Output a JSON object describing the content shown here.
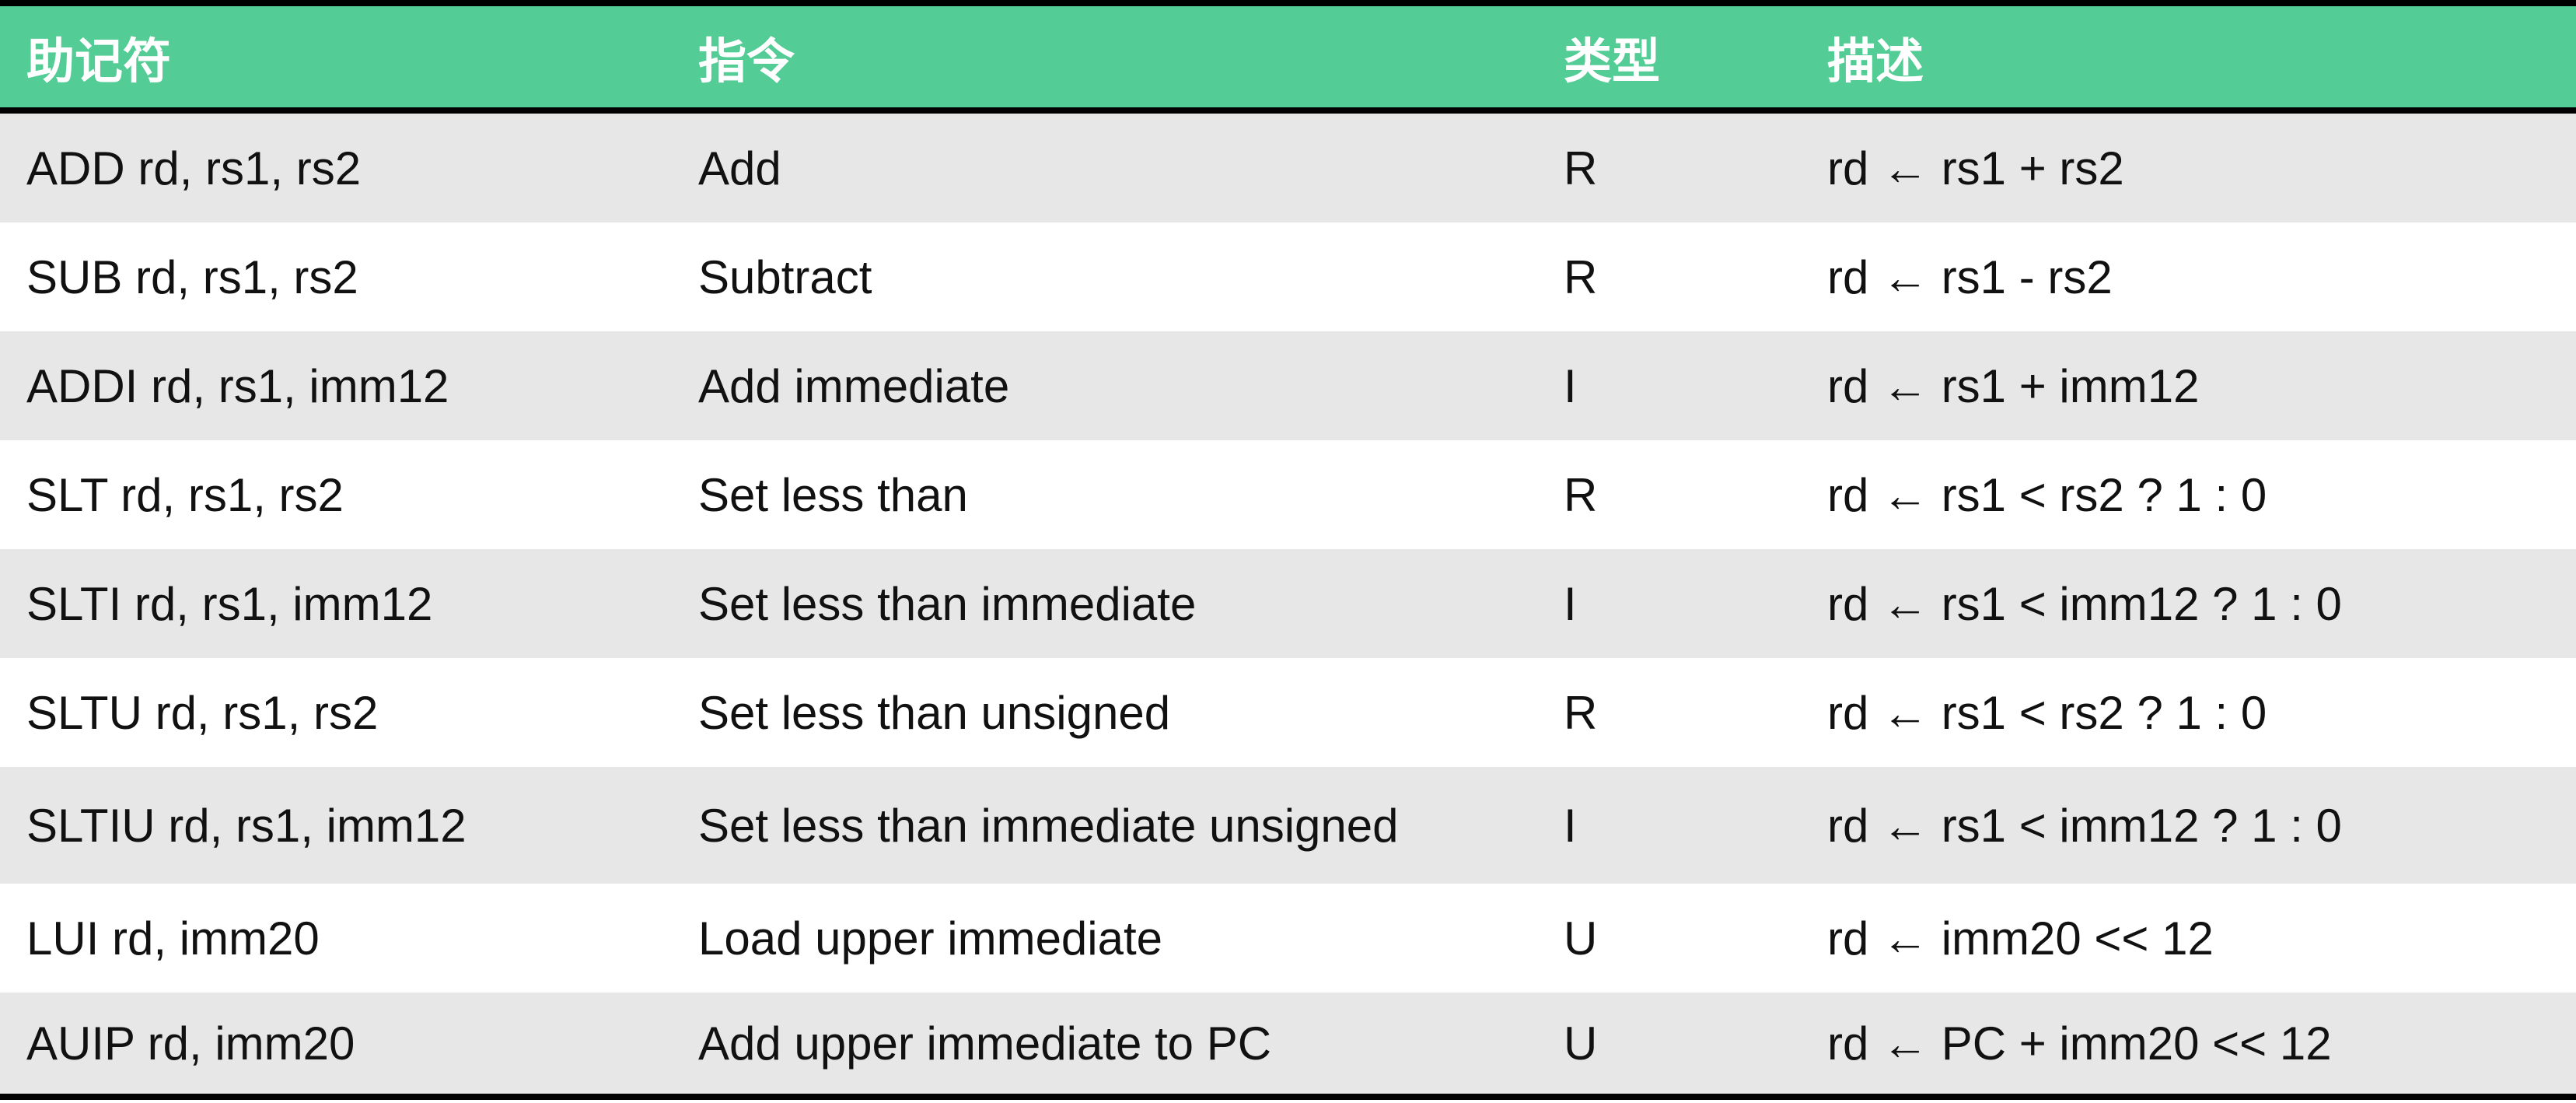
{
  "table": {
    "headers": [
      "助记符",
      "指令",
      "类型",
      "描述"
    ],
    "rows": [
      {
        "mnemonic": "ADD rd, rs1, rs2",
        "instruction": "Add",
        "type": "R",
        "description": "rd ← rs1 + rs2"
      },
      {
        "mnemonic": "SUB rd, rs1, rs2",
        "instruction": "Subtract",
        "type": "R",
        "description": "rd ← rs1 - rs2"
      },
      {
        "mnemonic": "ADDI rd, rs1, imm12",
        "instruction": "Add immediate",
        "type": "I",
        "description": "rd ← rs1 + imm12"
      },
      {
        "mnemonic": "SLT rd, rs1, rs2",
        "instruction": "Set less than",
        "type": "R",
        "description": "rd ← rs1 < rs2 ? 1 : 0"
      },
      {
        "mnemonic": "SLTI rd, rs1, imm12",
        "instruction": "Set less than immediate",
        "type": "I",
        "description": "rd ← rs1 < imm12 ? 1 : 0"
      },
      {
        "mnemonic": "SLTU rd, rs1, rs2",
        "instruction": "Set less than unsigned",
        "type": "R",
        "description": "rd ← rs1 < rs2 ? 1 : 0"
      },
      {
        "mnemonic": "SLTIU rd, rs1, imm12",
        "instruction": "Set less than immediate unsigned",
        "type": "I",
        "description": "rd ← rs1 < imm12 ? 1 : 0"
      },
      {
        "mnemonic": "LUI rd, imm20",
        "instruction": "Load upper immediate",
        "type": "U",
        "description": "rd ← imm20 << 12"
      },
      {
        "mnemonic": "AUIP rd, imm20",
        "instruction": "Add upper immediate to PC",
        "type": "U",
        "description": "rd ← PC + imm20 << 12"
      }
    ]
  },
  "colors": {
    "header_bg": "#54cc96",
    "row_alt_bg": "#e7e7e7",
    "rule": "#000000"
  }
}
